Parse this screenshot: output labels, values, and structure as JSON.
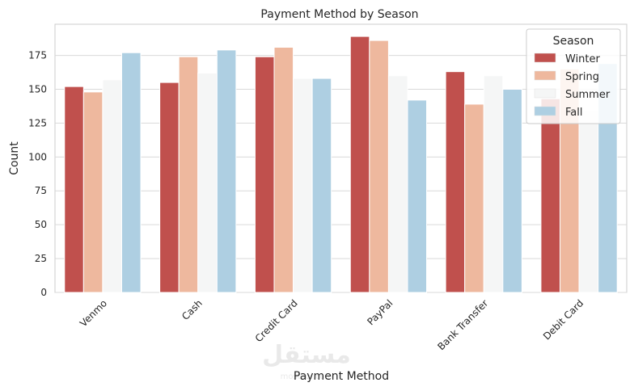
{
  "chart_data": {
    "type": "bar",
    "title": "Payment Method by Season",
    "xlabel": "Payment Method",
    "ylabel": "Count",
    "ylim": [
      0,
      198
    ],
    "yticks": [
      0,
      25,
      50,
      75,
      100,
      125,
      150,
      175
    ],
    "categories": [
      "Venmo",
      "Cash",
      "Credit Card",
      "PayPal",
      "Bank Transfer",
      "Debit Card"
    ],
    "series": [
      {
        "name": "Winter",
        "color": "#c0504d",
        "values": [
          152,
          155,
          174,
          189,
          163,
          143
        ]
      },
      {
        "name": "Spring",
        "color": "#eeb89e",
        "values": [
          148,
          174,
          181,
          186,
          139,
          165
        ]
      },
      {
        "name": "Summer",
        "color": "#f5f6f6",
        "values": [
          157,
          162,
          158,
          160,
          160,
          134
        ]
      },
      {
        "name": "Fall",
        "color": "#aecfe2",
        "values": [
          177,
          179,
          158,
          142,
          150,
          169
        ]
      }
    ],
    "legend": {
      "title": "Season",
      "placement": "top-right"
    },
    "grid": true
  },
  "watermark": {
    "text": "مستقل",
    "subtext": "mostaql.com"
  }
}
